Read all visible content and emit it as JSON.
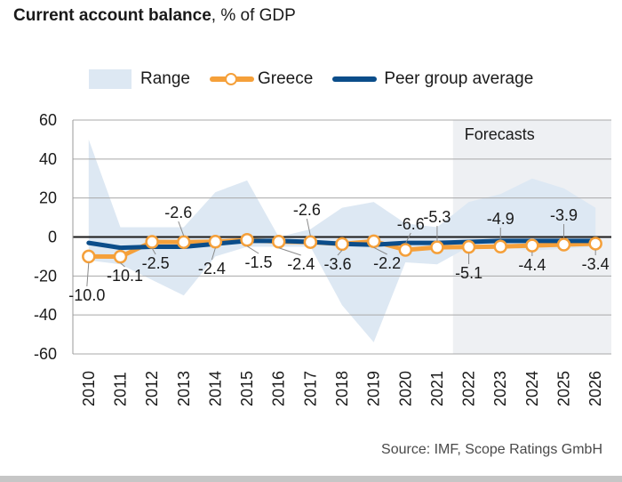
{
  "title": {
    "bold": "Current account balance",
    "rest": ", % of GDP"
  },
  "source": "Source: IMF, Scope Ratings GmbH",
  "chart_data": {
    "type": "line",
    "title": "Current account balance, % of GDP",
    "x": [
      "2010",
      "2011",
      "2012",
      "2013",
      "2014",
      "2015",
      "2016",
      "2017",
      "2018",
      "2019",
      "2020",
      "2021",
      "2022",
      "2023",
      "2024",
      "2025",
      "2026"
    ],
    "ylim": [
      -60,
      60
    ],
    "yticks": [
      60,
      40,
      20,
      0,
      -20,
      -40,
      -60
    ],
    "grid": true,
    "legend_position": "top",
    "forecast_label": "Forecasts",
    "forecast_start": "2022",
    "colors": {
      "range": "#dde8f3",
      "greece": "#f5a03a",
      "peer": "#0b4d8a",
      "forecast_shade": "#eef0f3"
    },
    "range": {
      "name": "Range",
      "upper": [
        50,
        5,
        5,
        5,
        23,
        29,
        0,
        4,
        15,
        18,
        7,
        5,
        18,
        22,
        30,
        25,
        15
      ],
      "lower": [
        -12,
        -14,
        -22,
        -30,
        -10,
        -5,
        -5,
        -5,
        -35,
        -54,
        -13,
        -14,
        -5,
        -5,
        -7,
        -6,
        -5
      ]
    },
    "series": [
      {
        "name": "Greece",
        "values": [
          -10.0,
          -10.1,
          -2.5,
          -2.6,
          -2.4,
          -1.5,
          -2.4,
          -2.6,
          -3.6,
          -2.2,
          -6.6,
          -5.3,
          -5.1,
          -4.9,
          -4.4,
          -3.9,
          -3.4
        ],
        "labels": [
          "-10.0",
          "-10.1",
          "-2.5",
          "-2.6",
          "-2.4",
          "-1.5",
          "-2.4",
          "-2.6",
          "-3.6",
          "-2.2",
          "-6.6",
          "-5.3",
          "-5.1",
          "-4.9",
          "-4.4",
          "-3.9",
          "-3.4"
        ]
      },
      {
        "name": "Peer group average",
        "values": [
          -3,
          -5.5,
          -5,
          -5,
          -3.5,
          -2,
          -2,
          -2.5,
          -3.5,
          -4,
          -3,
          -3,
          -2.5,
          -2,
          -2,
          -2,
          -2
        ]
      }
    ]
  }
}
